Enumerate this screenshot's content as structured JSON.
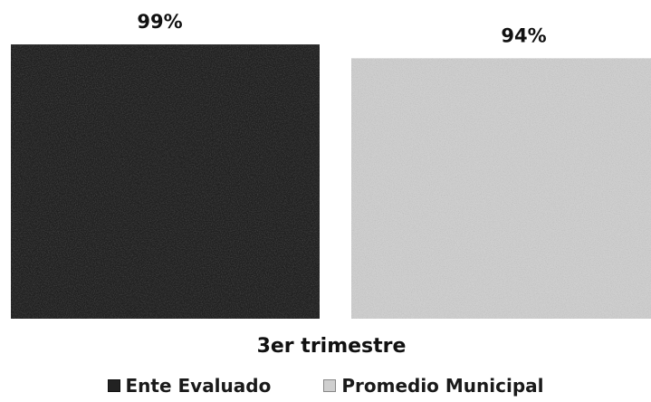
{
  "chart_data": {
    "type": "bar",
    "categories": [
      "3er trimestre"
    ],
    "series": [
      {
        "name": "Ente Evaluado",
        "values": [
          99
        ],
        "label": "99%",
        "color": "#222222",
        "pattern": "dark-noise"
      },
      {
        "name": "Promedio Municipal",
        "values": [
          94
        ],
        "label": "94%",
        "color": "#cfcfcf",
        "pattern": "light-noise"
      }
    ],
    "legend_position": "bottom",
    "grid": false
  }
}
